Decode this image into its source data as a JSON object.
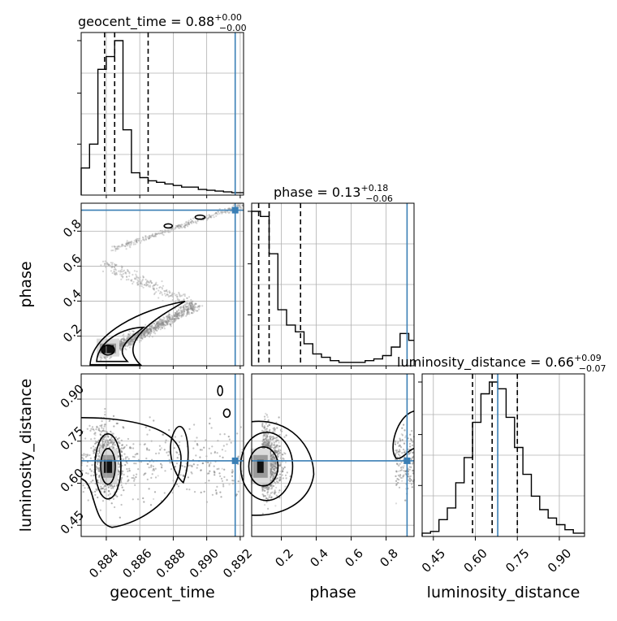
{
  "chart_data": {
    "type": "scatter",
    "parameters": [
      "geocent_time",
      "phase",
      "luminosity_distance"
    ],
    "titles": {
      "geocent_time": {
        "name": "geocent_time",
        "median": "0.88",
        "plus": "+0.00",
        "minus": "−0.00"
      },
      "phase": {
        "name": "phase",
        "median": "0.13",
        "plus": "+0.18",
        "minus": "−0.06"
      },
      "luminosity_distance": {
        "name": "luminosity_distance",
        "median": "0.66",
        "plus": "+0.09",
        "minus": "−0.07"
      }
    },
    "axis_labels": {
      "geocent_time": "geocent_time",
      "phase": "phase",
      "luminosity_distance": "luminosity_distance"
    },
    "ranges": {
      "geocent_time": [
        0.8825,
        0.8922
      ],
      "phase": [
        0.03,
        0.96
      ],
      "luminosity_distance": [
        0.41,
        0.99
      ]
    },
    "ticks": {
      "geocent_time": [
        "0.884",
        "0.886",
        "0.888",
        "0.890",
        "0.892"
      ],
      "phase": [
        "0.2",
        "0.4",
        "0.6",
        "0.8"
      ],
      "luminosity_distance": [
        "0.45",
        "0.60",
        "0.75",
        "0.90"
      ]
    },
    "truths": {
      "geocent_time": 0.8917,
      "phase": 0.92,
      "luminosity_distance": 0.68
    },
    "quantiles": {
      "geocent_time": [
        0.8839,
        0.8845,
        0.8865
      ],
      "phase": [
        0.07,
        0.13,
        0.31
      ],
      "luminosity_distance": [
        0.59,
        0.66,
        0.75
      ]
    },
    "histograms": {
      "geocent_time": {
        "edges": [
          0.8825,
          0.883,
          0.8835,
          0.884,
          0.8845,
          0.885,
          0.8855,
          0.886,
          0.8865,
          0.887,
          0.8875,
          0.888,
          0.8885,
          0.889,
          0.8895,
          0.89,
          0.8905,
          0.891,
          0.8915,
          0.8922
        ],
        "counts": [
          0.17,
          0.32,
          0.79,
          0.87,
          0.97,
          0.41,
          0.14,
          0.11,
          0.09,
          0.08,
          0.07,
          0.06,
          0.05,
          0.05,
          0.035,
          0.03,
          0.025,
          0.02,
          0.015
        ]
      },
      "phase": {
        "edges": [
          0.03,
          0.08,
          0.13,
          0.18,
          0.23,
          0.28,
          0.33,
          0.38,
          0.43,
          0.48,
          0.53,
          0.58,
          0.63,
          0.68,
          0.73,
          0.78,
          0.83,
          0.88,
          0.93,
          0.96
        ],
        "counts": [
          0.91,
          0.88,
          0.66,
          0.33,
          0.24,
          0.2,
          0.13,
          0.07,
          0.05,
          0.03,
          0.02,
          0.02,
          0.02,
          0.03,
          0.04,
          0.06,
          0.11,
          0.19,
          0.15
        ]
      },
      "luminosity_distance": {
        "edges": [
          0.41,
          0.44,
          0.47,
          0.5,
          0.53,
          0.56,
          0.59,
          0.62,
          0.65,
          0.68,
          0.71,
          0.74,
          0.77,
          0.8,
          0.83,
          0.86,
          0.89,
          0.92,
          0.95,
          0.99
        ],
        "counts": [
          0.02,
          0.03,
          0.1,
          0.17,
          0.32,
          0.47,
          0.68,
          0.85,
          0.92,
          0.88,
          0.71,
          0.53,
          0.37,
          0.24,
          0.16,
          0.11,
          0.07,
          0.04,
          0.02
        ]
      }
    },
    "samples_2d": {
      "geocent_time_vs_phase": {
        "mode_x": 0.8841,
        "mode_y": 0.12,
        "arc": "s-shaped band from (0.884,0.12) up to (0.892,0.94)"
      },
      "geocent_time_vs_luminosity_distance": {
        "mode_x": 0.8841,
        "mode_y": 0.66
      },
      "phase_vs_luminosity_distance": {
        "mode_x": 0.08,
        "mode_y": 0.66
      }
    }
  }
}
